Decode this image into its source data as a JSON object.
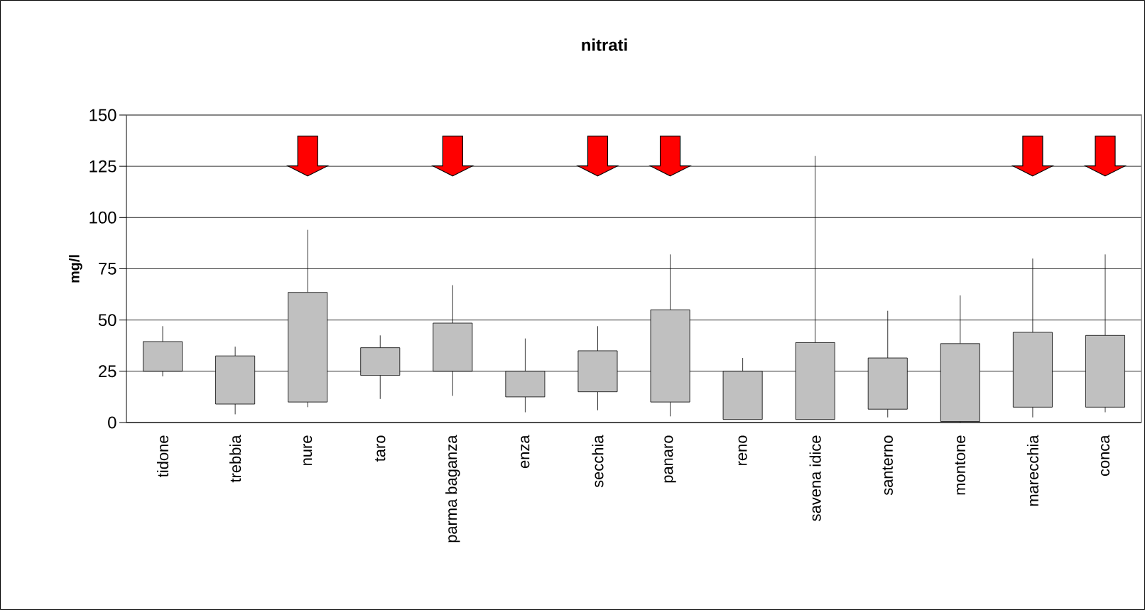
{
  "chart_data": {
    "type": "candlestick",
    "title": "nitrati",
    "ylabel": "mg/l",
    "categories": [
      "tidone",
      "trebbia",
      "nure",
      "taro",
      "parma baganza",
      "enza",
      "secchia",
      "panaro",
      "reno",
      "savena idice",
      "santerno",
      "montone",
      "marecchia",
      "conca"
    ],
    "ohlc": [
      [
        25,
        47,
        22.5,
        39.5
      ],
      [
        9,
        37,
        4,
        32.5
      ],
      [
        10,
        94,
        7.5,
        63.5
      ],
      [
        23,
        42.5,
        11.5,
        36.5
      ],
      [
        25,
        67,
        13,
        48.5
      ],
      [
        12.5,
        41,
        5,
        25
      ],
      [
        15,
        47,
        6,
        35
      ],
      [
        10,
        82,
        3,
        55
      ],
      [
        1.5,
        31.5,
        1.5,
        25
      ],
      [
        1.5,
        130,
        1.5,
        39
      ],
      [
        6.5,
        54.5,
        2.5,
        31.5
      ],
      [
        0.5,
        62,
        0,
        38.5
      ],
      [
        7.5,
        80,
        2.5,
        44
      ],
      [
        7.5,
        82,
        5,
        42.5
      ]
    ],
    "color": "#c0c0c0",
    "series": [
      {
        "type": "scatter",
        "color": "#ff0000",
        "x": [
          "nure",
          "parma baganza",
          "secchia",
          "panaro",
          "marecchia",
          "conca"
        ],
        "values": [
          130,
          130,
          130,
          130,
          130,
          130
        ]
      }
    ],
    "ylim": [
      0,
      150
    ],
    "yticks": [
      0,
      25,
      50,
      75,
      100,
      125,
      150
    ],
    "grid": "y"
  }
}
